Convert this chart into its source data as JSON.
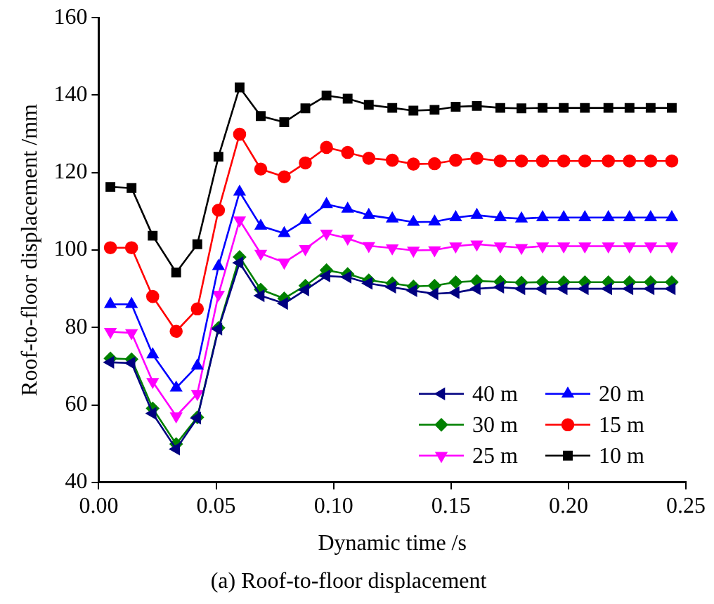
{
  "chart_data": {
    "type": "line",
    "title": "(a) Roof-to-floor displacement",
    "xlabel": "Dynamic time /s",
    "ylabel": "Roof-to-floor displacement /mm",
    "x": [
      0.005,
      0.014,
      0.023,
      0.033,
      0.042,
      0.051,
      0.06,
      0.069,
      0.079,
      0.088,
      0.097,
      0.106,
      0.115,
      0.125,
      0.134,
      0.143,
      0.152,
      0.161,
      0.171,
      0.18,
      0.189,
      0.198,
      0.207,
      0.217,
      0.226,
      0.235,
      0.244
    ],
    "xlim": [
      0,
      0.25
    ],
    "xticks": [
      {
        "value": 0,
        "label": "0.00"
      },
      {
        "value": 0.05,
        "label": "0.05"
      },
      {
        "value": 0.1,
        "label": "0.10"
      },
      {
        "value": 0.15,
        "label": "0.15"
      },
      {
        "value": 0.2,
        "label": "0.20"
      },
      {
        "value": 0.25,
        "label": "0.25"
      }
    ],
    "ylim": [
      40,
      160
    ],
    "yticks": [
      40,
      60,
      80,
      100,
      120,
      140,
      160
    ],
    "grid": false,
    "legend": "bottom right",
    "line_style": "solid",
    "series": [
      {
        "name": "40 m",
        "color": "#000080",
        "marker": "triangle-left",
        "values": [
          71,
          70.8,
          57.8,
          48.6,
          56.6,
          79.6,
          96.7,
          88.2,
          86.2,
          89.7,
          93.3,
          93,
          91.4,
          90.4,
          89.5,
          88.7,
          89,
          90,
          90.4,
          90,
          90,
          90,
          90,
          90,
          90,
          90,
          90
        ]
      },
      {
        "name": "20 m",
        "color": "#0000ff",
        "marker": "triangle",
        "values": [
          86,
          86,
          73,
          64.4,
          70.1,
          95.8,
          115,
          106.2,
          104.3,
          107.7,
          111.8,
          110.6,
          109,
          108.1,
          107.2,
          107.3,
          108.4,
          109,
          108.4,
          108.1,
          108.4,
          108.4,
          108.4,
          108.4,
          108.4,
          108.4,
          108.4
        ]
      },
      {
        "name": "30 m",
        "color": "#008000",
        "marker": "diamond",
        "values": [
          72,
          71.8,
          59.1,
          49.9,
          56.8,
          79.9,
          98.2,
          89.8,
          87.5,
          90.8,
          94.8,
          93.8,
          92.2,
          91.4,
          90.6,
          90.8,
          91.7,
          92,
          91.8,
          91.6,
          91.7,
          91.7,
          91.7,
          91.7,
          91.7,
          91.7,
          91.7
        ]
      },
      {
        "name": "15 m",
        "color": "#ff0000",
        "marker": "circle",
        "values": [
          100.6,
          100.6,
          88,
          79,
          84.8,
          110.3,
          129.9,
          120.9,
          118.9,
          122.5,
          126.5,
          125.2,
          123.7,
          123.2,
          122.2,
          122.3,
          123.2,
          123.7,
          123,
          123,
          123,
          123,
          123,
          123,
          123,
          123,
          123
        ]
      },
      {
        "name": "25 m",
        "color": "#ff00ff",
        "marker": "triangle-down",
        "values": [
          78.9,
          78.6,
          66,
          57.1,
          62.9,
          88.5,
          107.7,
          99.1,
          96.8,
          100.3,
          104.3,
          103,
          101.1,
          100.5,
          99.9,
          100,
          101,
          101.5,
          101,
          100.6,
          101,
          101,
          101,
          101,
          101,
          101,
          101
        ]
      },
      {
        "name": "10 m",
        "color": "#000000",
        "marker": "square",
        "values": [
          116.3,
          116,
          103.7,
          94.2,
          101.5,
          124.1,
          142,
          134.6,
          133,
          136.6,
          139.9,
          139.1,
          137.5,
          136.7,
          136,
          136.2,
          137,
          137.2,
          136.7,
          136.6,
          136.7,
          136.7,
          136.7,
          136.7,
          136.7,
          136.7,
          136.7
        ]
      }
    ]
  }
}
